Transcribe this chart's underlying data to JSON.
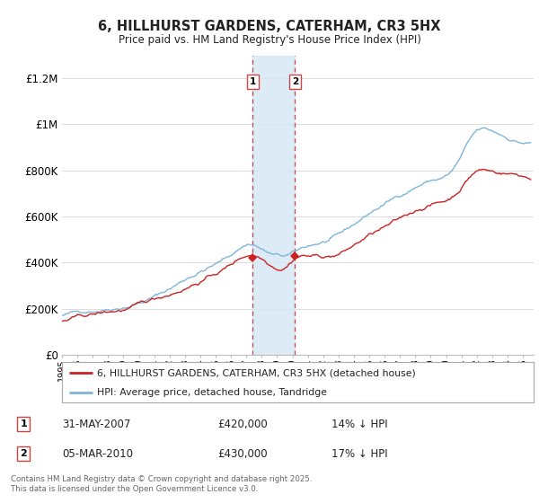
{
  "title": "6, HILLHURST GARDENS, CATERHAM, CR3 5HX",
  "subtitle": "Price paid vs. HM Land Registry's House Price Index (HPI)",
  "ylim": [
    0,
    1300000
  ],
  "yticks": [
    0,
    200000,
    400000,
    600000,
    800000,
    1000000,
    1200000
  ],
  "ytick_labels": [
    "£0",
    "£200K",
    "£400K",
    "£600K",
    "£800K",
    "£1M",
    "£1.2M"
  ],
  "background_color": "#ffffff",
  "grid_color": "#dddddd",
  "hpi_color": "#7EB6D9",
  "price_color": "#CC2222",
  "shade_color": "#D6E8F5",
  "vline_color": "#CC4444",
  "legend_label_price": "6, HILLHURST GARDENS, CATERHAM, CR3 5HX (detached house)",
  "legend_label_hpi": "HPI: Average price, detached house, Tandridge",
  "footer": "Contains HM Land Registry data © Crown copyright and database right 2025.\nThis data is licensed under the Open Government Licence v3.0.",
  "sale_table": [
    {
      "num": "1",
      "date": "31-MAY-2007",
      "price": "£420,000",
      "pct": "14% ↓ HPI"
    },
    {
      "num": "2",
      "date": "05-MAR-2010",
      "price": "£430,000",
      "pct": "17% ↓ HPI"
    }
  ]
}
